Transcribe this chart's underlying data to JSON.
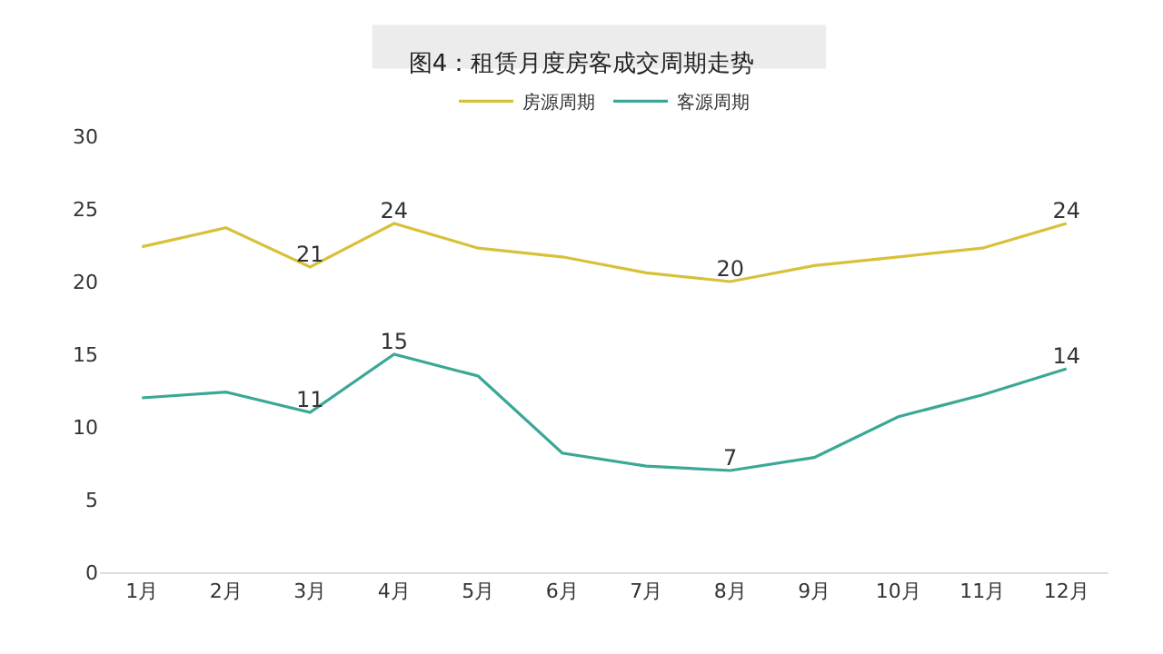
{
  "chart_data": {
    "type": "line",
    "title": "图4：租赁月度房客成交周期走势",
    "categories": [
      "1月",
      "2月",
      "3月",
      "4月",
      "5月",
      "6月",
      "7月",
      "8月",
      "9月",
      "10月",
      "11月",
      "12月"
    ],
    "series": [
      {
        "name": "房源周期",
        "color": "#d9c03a",
        "values": [
          22.4,
          23.7,
          21,
          24,
          22.3,
          21.7,
          20.6,
          20,
          21.1,
          21.7,
          22.3,
          24
        ],
        "value_labels": [
          null,
          null,
          "21",
          "24",
          null,
          null,
          null,
          "20",
          null,
          null,
          null,
          "24"
        ]
      },
      {
        "name": "客源周期",
        "color": "#3aa895",
        "values": [
          12,
          12.4,
          11,
          15,
          13.5,
          8.2,
          7.3,
          7,
          7.9,
          10.7,
          12.2,
          14
        ],
        "value_labels": [
          null,
          null,
          "11",
          "15",
          null,
          null,
          null,
          "7",
          null,
          null,
          null,
          "14"
        ]
      }
    ],
    "ylim": [
      0,
      30
    ],
    "yticks": [
      0,
      5,
      10,
      15,
      20,
      25,
      30
    ],
    "grid": false,
    "legend": "top",
    "marker": "none",
    "line_style": "solid"
  }
}
